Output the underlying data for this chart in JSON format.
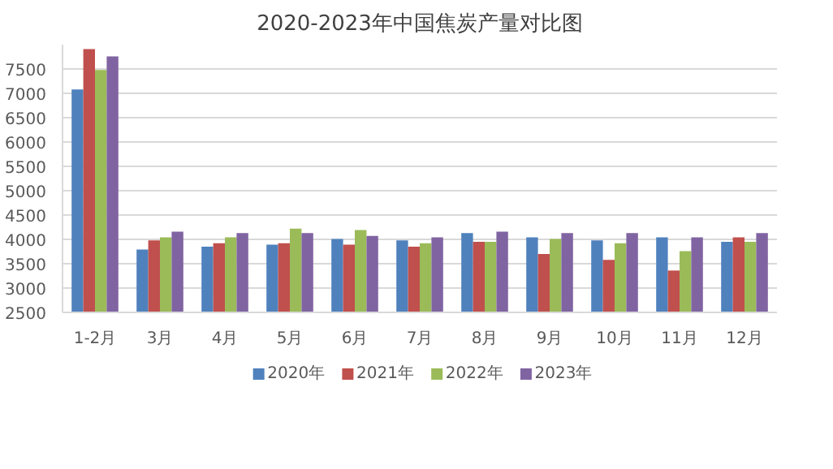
{
  "chart_data": {
    "type": "bar",
    "title": "2020-2023年中国焦炭产量对比图",
    "categories": [
      "1-2月",
      "3月",
      "4月",
      "5月",
      "6月",
      "7月",
      "8月",
      "9月",
      "10月",
      "11月",
      "12月"
    ],
    "series": [
      {
        "name": "2020年",
        "color": "#4f81bd",
        "values": [
          7080,
          3790,
          3850,
          3890,
          4010,
          3980,
          4130,
          4040,
          3980,
          4040,
          3950
        ]
      },
      {
        "name": "2021年",
        "color": "#c0504d",
        "values": [
          7910,
          3980,
          3920,
          3920,
          3890,
          3850,
          3950,
          3700,
          3580,
          3360,
          4040
        ]
      },
      {
        "name": "2022年",
        "color": "#9bbb59",
        "values": [
          7480,
          4040,
          4040,
          4220,
          4190,
          3920,
          3950,
          4010,
          3920,
          3760,
          3950
        ]
      },
      {
        "name": "2023年",
        "color": "#8064a2",
        "values": [
          7760,
          4160,
          4130,
          4130,
          4070,
          4040,
          4160,
          4130,
          4130,
          4040,
          4130
        ]
      }
    ],
    "ylim": [
      2500,
      8000
    ],
    "yticks": [
      2500,
      3000,
      3500,
      4000,
      4500,
      5000,
      5500,
      6000,
      6500,
      7000,
      7500
    ],
    "grid": "y",
    "legend": "bottom"
  }
}
